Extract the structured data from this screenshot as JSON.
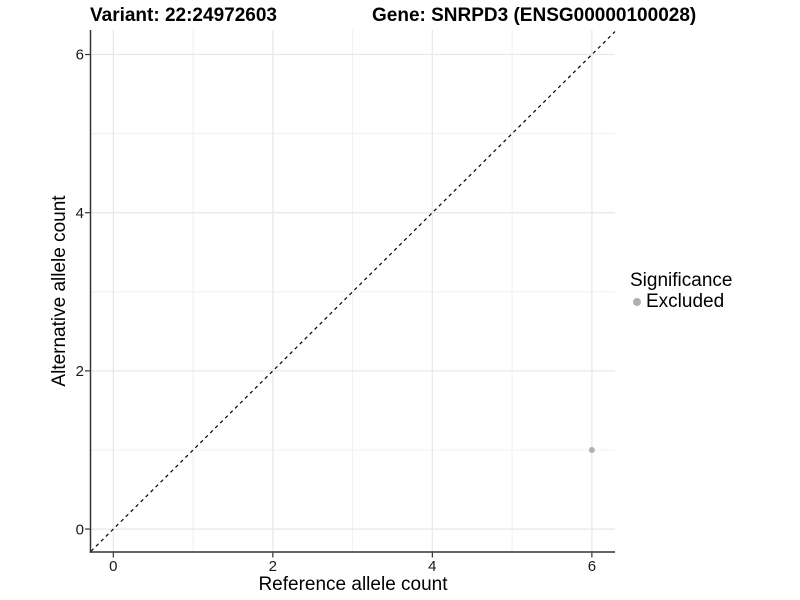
{
  "titles": {
    "variant": "Variant: 22:24972603",
    "gene": "Gene: SNRPD3 (ENSG00000100028)"
  },
  "chart_data": {
    "type": "scatter",
    "title": "Variant: 22:24972603   Gene: SNRPD3 (ENSG00000100028)",
    "xlabel": "Reference allele count",
    "ylabel": "Alternative allele count",
    "xlim": [
      -0.28,
      6.29
    ],
    "ylim": [
      -0.29,
      6.31
    ],
    "x_ticks": [
      0,
      2,
      4,
      6
    ],
    "y_ticks": [
      0,
      2,
      4,
      6
    ],
    "x_minor_gridlines": [
      1,
      3,
      5
    ],
    "y_minor_gridlines": [
      1,
      3,
      5
    ],
    "grid": true,
    "identity_line": {
      "equation": "y = x",
      "style": "dashed",
      "color": "#000000"
    },
    "series": [
      {
        "name": "Excluded",
        "color": "#b0b0b0",
        "points": [
          {
            "x": 6,
            "y": 1
          }
        ]
      }
    ],
    "legend": {
      "title": "Significance",
      "position": "right",
      "entries": [
        {
          "label": "Excluded",
          "color": "#b0b0b0"
        }
      ]
    }
  },
  "colors": {
    "background": "#ffffff",
    "grid_major": "#e9e9e9",
    "grid_minor": "#f0f0f0",
    "axis_line": "#333333",
    "tick_text": "#1a1a1a",
    "title_text": "#000000"
  }
}
